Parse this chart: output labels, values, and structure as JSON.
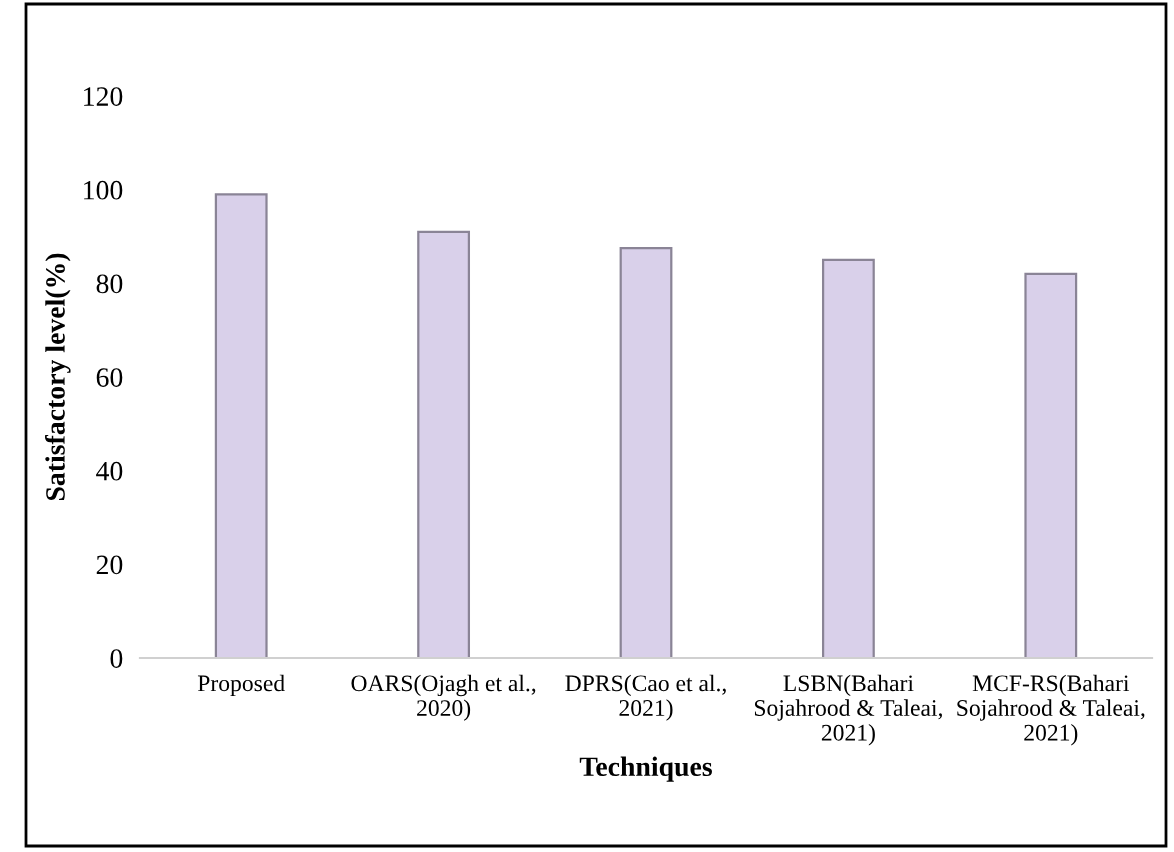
{
  "chart_data": {
    "type": "bar",
    "xlabel": "Techniques",
    "ylabel": "Satisfactory level(%)",
    "categories": [
      "Proposed",
      "OARS(Ojagh et al.,\n2020)",
      "DPRS(Cao et al.,\n2021)",
      "LSBN(Bahari\nSojahrood & Taleai,\n2021)",
      "MCF-RS(Bahari\nSojahrood & Taleai,\n2021)"
    ],
    "values": [
      99,
      91,
      87.5,
      85,
      82
    ],
    "color": "#d9d0ea",
    "ylim": [
      0,
      120
    ],
    "yticks": [
      0,
      20,
      40,
      60,
      80,
      100,
      120
    ],
    "grid": false
  }
}
